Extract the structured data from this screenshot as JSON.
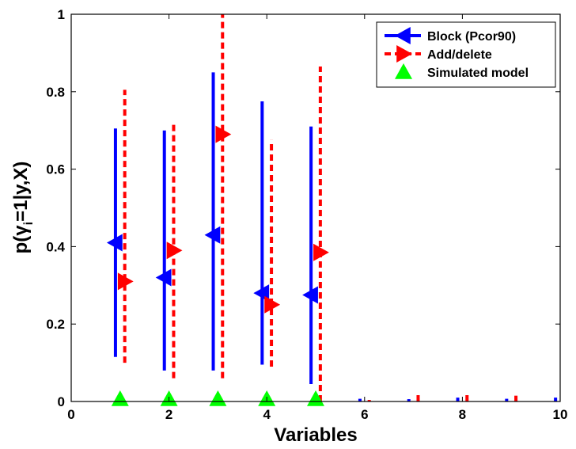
{
  "chart_data": {
    "type": "errorbar",
    "xlabel": "Variables",
    "ylabel_prefix": "p(",
    "ylabel_symbol": "γ",
    "ylabel_sub": "i",
    "ylabel_suffix": "=1|y,X)",
    "xlim": [
      0,
      10
    ],
    "ylim": [
      0,
      1
    ],
    "x_ticks": [
      "0",
      "2",
      "4",
      "6",
      "8",
      "10"
    ],
    "y_ticks": [
      "0",
      "0.2",
      "0.4",
      "0.6",
      "0.8",
      "1"
    ],
    "grid": false,
    "legend_position": "top-right",
    "series": [
      {
        "name": "Block (Pcor90)",
        "color": "#0000ff",
        "style": "solid",
        "marker": "triangle-left",
        "x": [
          1,
          2,
          3,
          4,
          5,
          6,
          7,
          8,
          9,
          10
        ],
        "mean": [
          0.41,
          0.32,
          0.43,
          0.28,
          0.275,
          0.003,
          0.003,
          0.005,
          0.003,
          0.005
        ],
        "lower": [
          0.115,
          0.08,
          0.08,
          0.095,
          0.045,
          0.0,
          0.0,
          0.0,
          0.0,
          0.0
        ],
        "upper": [
          0.705,
          0.7,
          0.85,
          0.775,
          0.71,
          0.007,
          0.006,
          0.01,
          0.007,
          0.01
        ]
      },
      {
        "name": "Add/delete",
        "color": "#ff0000",
        "style": "dashed",
        "marker": "triangle-right",
        "x": [
          1,
          2,
          3,
          4,
          5,
          6,
          7,
          8,
          9,
          10
        ],
        "mean": [
          0.31,
          0.39,
          0.69,
          0.25,
          0.385,
          0.002,
          0.005,
          0.006,
          0.005,
          0.0
        ],
        "lower": [
          0.1,
          0.06,
          0.06,
          0.09,
          0.0,
          0.0,
          0.0,
          0.0,
          0.0,
          0.0
        ],
        "upper": [
          0.805,
          0.72,
          1.0,
          0.675,
          0.865,
          0.004,
          0.017,
          0.02,
          0.015,
          0.0
        ]
      },
      {
        "name": "Simulated model",
        "color": "#00ff00",
        "style": "none",
        "marker": "triangle-up",
        "x": [
          1,
          2,
          3,
          4,
          5
        ],
        "y": [
          0,
          0,
          0,
          0,
          0
        ]
      }
    ]
  }
}
